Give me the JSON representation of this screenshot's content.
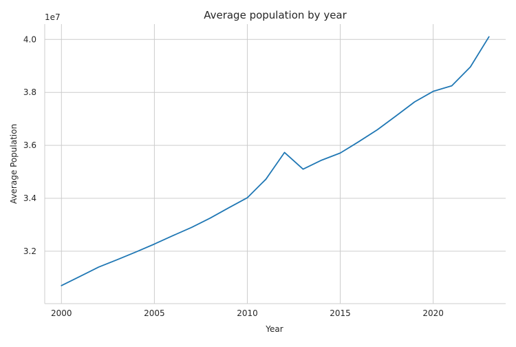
{
  "chart_data": {
    "type": "line",
    "title": "Average population by year",
    "xlabel": "Year",
    "ylabel": "Average Population",
    "y_offset_label": "1e7",
    "y_scale_factor": 10000000,
    "xlim": [
      1999.1,
      2023.9
    ],
    "ylim": [
      30020000,
      40580000
    ],
    "xticks": [
      2000,
      2005,
      2010,
      2015,
      2020
    ],
    "xtick_labels": [
      "2000",
      "2005",
      "2010",
      "2015",
      "2020"
    ],
    "yticks": [
      32000000,
      34000000,
      36000000,
      38000000,
      40000000
    ],
    "ytick_labels": [
      "3.2",
      "3.4",
      "3.6",
      "3.8",
      "4.0"
    ],
    "grid": true,
    "color": "#1f77b4",
    "x": [
      2000,
      2001,
      2002,
      2003,
      2004,
      2005,
      2006,
      2007,
      2008,
      2009,
      2010,
      2011,
      2012,
      2013,
      2014,
      2015,
      2016,
      2017,
      2018,
      2019,
      2020,
      2021,
      2022,
      2023
    ],
    "series": [
      {
        "values": [
          30700000,
          31050000,
          31400000,
          31680000,
          31970000,
          32270000,
          32590000,
          32900000,
          33250000,
          33640000,
          34020000,
          34720000,
          35730000,
          35100000,
          35440000,
          35710000,
          36140000,
          36590000,
          37110000,
          37640000,
          38040000,
          38250000,
          38960000,
          40100000
        ]
      }
    ]
  }
}
